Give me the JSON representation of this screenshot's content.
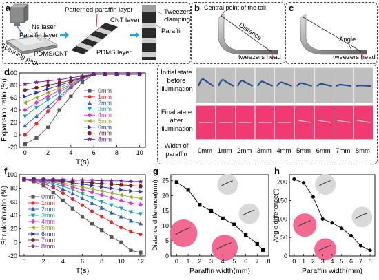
{
  "panels": {
    "a": "a",
    "b": "b",
    "c": "c",
    "d": "d",
    "e": "e",
    "f": "f",
    "g": "g",
    "h": "h"
  },
  "panel_a": {
    "ns_laser": "Ns laser",
    "paraffin_layer": "Paraffin layer",
    "pdms_cnt": "PDMS/CNT",
    "scanning_path": "Scanning path",
    "patterned_paraffin": "Patterned paraffin layer",
    "cnt_layer": "CNT layer",
    "pdms_layer": "PDMS layer",
    "tweezers_clamping": "Tweezers\nclamping",
    "paraffin": "Paraffin"
  },
  "panel_b": {
    "central_point": "Central point of the tail",
    "distance": "Distance",
    "tweezers_head": "tweezers head"
  },
  "panel_c": {
    "angle": "Angle",
    "tweezers_head": "tweezers head"
  },
  "panel_e": {
    "row1": "Initial state\nbefore\nillumination",
    "row2": "Final atate\nafter\nillumination",
    "row3": "Width of\nparaffin",
    "widths": [
      "0mm",
      "1mm",
      "2mm",
      "3mm",
      "4mm",
      "5mm",
      "6mm",
      "7mm",
      "8mm"
    ]
  },
  "colors": {
    "pink": "#f03a73",
    "gray": "#bfbfbf"
  },
  "chart_data": [
    {
      "id": "d",
      "type": "line",
      "xlabel": "T(s)",
      "ylabel": "Expansion ratio (%)",
      "xlim": [
        -0.5,
        10.5
      ],
      "ylim": [
        -20,
        100
      ],
      "xticks": [
        0,
        2,
        4,
        6,
        8,
        10
      ],
      "yticks": [
        -20,
        0,
        20,
        40,
        60,
        80,
        100
      ],
      "x": [
        0,
        1,
        2,
        3,
        4,
        5,
        6,
        7,
        8,
        9,
        10
      ],
      "series": [
        {
          "name": "0mm",
          "color": "#555555",
          "marker": "square",
          "values": [
            -15,
            -5,
            12,
            40,
            62,
            85,
            98,
            98,
            98,
            98,
            98
          ]
        },
        {
          "name": "1mm",
          "color": "#e8262a",
          "marker": "circle",
          "values": [
            0,
            18,
            38,
            58,
            76,
            90,
            98,
            98,
            98,
            98,
            98
          ]
        },
        {
          "name": "2mm",
          "color": "#2f5ec8",
          "marker": "triangle",
          "values": [
            15,
            30,
            46,
            62,
            78,
            90,
            98,
            98,
            98,
            98,
            98
          ]
        },
        {
          "name": "3mm",
          "color": "#1aa3a0",
          "marker": "triangle-down",
          "values": [
            30,
            44,
            56,
            68,
            80,
            90,
            98,
            98,
            98,
            98,
            98
          ]
        },
        {
          "name": "4mm",
          "color": "#d23ad2",
          "marker": "diamond",
          "values": [
            40,
            52,
            62,
            72,
            82,
            91,
            98,
            98,
            98,
            98,
            98
          ]
        },
        {
          "name": "5mm",
          "color": "#9aa82a",
          "marker": "triangle-left",
          "values": [
            52,
            60,
            68,
            76,
            84,
            92,
            98,
            98,
            98,
            98,
            98
          ]
        },
        {
          "name": "6mm",
          "color": "#2233aa",
          "marker": "triangle-right",
          "values": [
            62,
            68,
            74,
            80,
            86,
            92,
            98,
            98,
            98,
            98,
            98
          ]
        },
        {
          "name": "7mm",
          "color": "#7a1f1f",
          "marker": "hexagon",
          "values": [
            72,
            76,
            80,
            84,
            88,
            93,
            98,
            98,
            98,
            98,
            98
          ]
        },
        {
          "name": "8mm",
          "color": "#6a1fa0",
          "marker": "star",
          "values": [
            82,
            85,
            87,
            89,
            92,
            95,
            98,
            98,
            98,
            98,
            98
          ]
        }
      ]
    },
    {
      "id": "f",
      "type": "line",
      "xlabel": "T(s)",
      "ylabel": "Shrinkinh ratio (%)",
      "xlim": [
        -0.5,
        12.5
      ],
      "ylim": [
        -20,
        100
      ],
      "xticks": [
        0,
        2,
        4,
        6,
        8,
        10,
        12
      ],
      "yticks": [
        -20,
        0,
        20,
        40,
        60,
        80,
        100
      ],
      "x": [
        0,
        1,
        2,
        3,
        4,
        5,
        6,
        7,
        8,
        9,
        10,
        11,
        12
      ],
      "series": [
        {
          "name": "0mm",
          "color": "#555555",
          "marker": "square",
          "values": [
            93,
            90,
            84,
            74,
            62,
            50,
            38,
            28,
            18,
            8,
            0,
            -12,
            -15
          ]
        },
        {
          "name": "1mm",
          "color": "#e8262a",
          "marker": "circle",
          "values": [
            93,
            91,
            87,
            81,
            73,
            64,
            55,
            46,
            38,
            30,
            22,
            16,
            12
          ]
        },
        {
          "name": "2mm",
          "color": "#2f5ec8",
          "marker": "triangle",
          "values": [
            93,
            92,
            89,
            85,
            79,
            72,
            65,
            58,
            51,
            44,
            38,
            32,
            28
          ]
        },
        {
          "name": "3mm",
          "color": "#1aa3a0",
          "marker": "triangle-down",
          "values": [
            93,
            92,
            90,
            87,
            83,
            78,
            72,
            66,
            60,
            55,
            50,
            45,
            42
          ]
        },
        {
          "name": "4mm",
          "color": "#d23ad2",
          "marker": "diamond",
          "values": [
            93,
            92,
            91,
            89,
            86,
            82,
            78,
            74,
            70,
            66,
            62,
            58,
            56
          ]
        },
        {
          "name": "5mm",
          "color": "#9aa82a",
          "marker": "triangle-left",
          "values": [
            93,
            93,
            92,
            90,
            88,
            85,
            82,
            79,
            76,
            73,
            70,
            67,
            65
          ]
        },
        {
          "name": "6mm",
          "color": "#2233aa",
          "marker": "triangle-right",
          "values": [
            93,
            93,
            92,
            91,
            90,
            88,
            86,
            84,
            82,
            80,
            78,
            76,
            75
          ]
        },
        {
          "name": "7mm",
          "color": "#7a1f1f",
          "marker": "hexagon",
          "values": [
            93,
            93,
            93,
            92,
            91,
            90,
            89,
            88,
            87,
            86,
            85,
            84,
            83
          ]
        },
        {
          "name": "8mm",
          "color": "#6a1fa0",
          "marker": "star",
          "values": [
            93,
            93,
            93,
            93,
            93,
            92,
            92,
            92,
            91,
            91,
            91,
            90,
            90
          ]
        }
      ]
    },
    {
      "id": "g",
      "type": "line",
      "xlabel": "Paraffin width(mm)",
      "ylabel": "Distance difference(mm)",
      "xlim": [
        -0.5,
        8
      ],
      "ylim": [
        0,
        27
      ],
      "xticks": [
        0,
        1,
        2,
        3,
        4,
        5,
        6,
        7,
        8
      ],
      "yticks": [
        0,
        5,
        10,
        15,
        20,
        25
      ],
      "x": [
        0,
        1,
        2,
        3,
        4,
        5,
        6,
        7,
        7.5
      ],
      "series": [
        {
          "name": "",
          "color": "#000000",
          "marker": "square",
          "values": [
            24.5,
            22,
            17,
            15,
            12.5,
            10.5,
            7,
            4,
            2
          ]
        }
      ]
    },
    {
      "id": "h",
      "type": "line",
      "xlabel": "Paraffin width(mm)",
      "ylabel": "Angle difference(°)",
      "xlim": [
        -0.5,
        8.5
      ],
      "ylim": [
        0,
        220
      ],
      "xticks": [
        0,
        1,
        2,
        3,
        4,
        5,
        6,
        7,
        8
      ],
      "yticks": [
        0,
        50,
        100,
        150,
        200
      ],
      "x": [
        0,
        1,
        2,
        3,
        4,
        5,
        6,
        7,
        8
      ],
      "series": [
        {
          "name": "",
          "color": "#000000",
          "marker": "circle",
          "values": [
            208,
            198,
            160,
            100,
            90,
            75,
            55,
            28,
            15
          ]
        }
      ]
    }
  ]
}
